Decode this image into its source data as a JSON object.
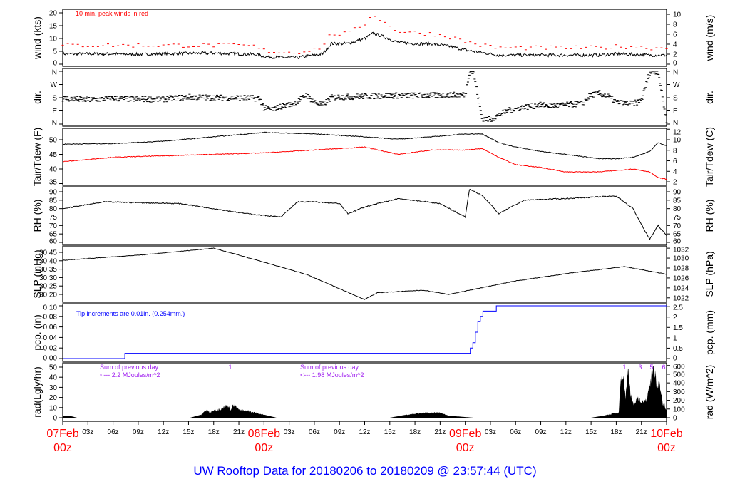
{
  "title": "UW Rooftop Data for 20180206  to  20180209 @ 23:57:44  (UTC)",
  "colors": {
    "black": "#000000",
    "red": "#ff0000",
    "blue": "#0000ff",
    "purple": "#a020f0"
  },
  "chart_data": [
    {
      "id": "wind",
      "type": "line",
      "ylabel": "wind (kts)",
      "ylabel_right": "wind (m/s)",
      "yticks": [
        "0",
        "5",
        "10",
        "15",
        "20"
      ],
      "yticks_right": [
        "0",
        "2",
        "4",
        "6",
        "8",
        "10"
      ],
      "ylim": [
        0,
        20
      ],
      "annotation": "10 min. peak winds in red",
      "x_hours": [
        0,
        3,
        6,
        9,
        12,
        15,
        18,
        21,
        23,
        24,
        26,
        28,
        30,
        31,
        32,
        34,
        36,
        37,
        38,
        40,
        42,
        44,
        46,
        48,
        50,
        52,
        56,
        60,
        64,
        66,
        68,
        70,
        72
      ],
      "series": [
        {
          "name": "wind",
          "color": "#000000",
          "values": [
            4,
            4,
            4,
            3.8,
            4,
            4.2,
            4.3,
            4,
            3.8,
            3,
            2.6,
            2.6,
            3.5,
            4,
            8,
            8,
            10,
            12,
            11,
            8.5,
            8,
            8,
            7,
            5.5,
            4.5,
            3.5,
            3.5,
            3.5,
            3.5,
            4,
            3.8,
            3.5,
            3.5
          ]
        },
        {
          "name": "peak",
          "color": "#ff0000",
          "values": [
            6.5,
            6.5,
            6.5,
            6.5,
            6.5,
            6.5,
            6.5,
            6.5,
            6,
            4.5,
            3.8,
            3.8,
            5,
            6,
            11,
            11,
            15,
            19,
            16,
            12,
            11.5,
            11,
            10,
            8,
            6.5,
            5.5,
            5.5,
            5.5,
            5.5,
            6,
            6,
            5.5,
            5.5
          ]
        }
      ]
    },
    {
      "id": "dir",
      "type": "scatter",
      "ylabel": "dir.",
      "ylabel_right": "dir.",
      "yticks": [
        "N",
        "E",
        "S",
        "W",
        "N"
      ],
      "ylim": [
        0,
        360
      ],
      "x_hours": [
        0,
        3,
        6,
        9,
        12,
        15,
        18,
        21,
        23.5,
        24,
        25,
        26,
        27,
        28,
        29,
        30,
        31,
        32,
        33,
        34,
        36,
        40,
        44,
        48,
        48.5,
        49,
        50,
        51,
        52,
        53,
        55,
        57,
        59,
        61,
        62,
        63,
        64,
        65,
        66,
        67,
        68,
        69,
        70,
        71,
        72
      ],
      "values": [
        175,
        165,
        175,
        170,
        170,
        185,
        180,
        180,
        175,
        110,
        100,
        120,
        130,
        150,
        200,
        150,
        130,
        180,
        185,
        185,
        190,
        195,
        195,
        200,
        360,
        350,
        40,
        30,
        60,
        90,
        115,
        130,
        125,
        135,
        140,
        200,
        210,
        190,
        150,
        140,
        140,
        160,
        350,
        360,
        20
      ]
    },
    {
      "id": "temp",
      "type": "line",
      "ylabel": "Tair/Tdew (F)",
      "ylabel_right": "Tair/Tdew (C)",
      "yticks": [
        "35",
        "40",
        "45",
        "50"
      ],
      "yticks_right": [
        "2",
        "4",
        "6",
        "8",
        "10",
        "12"
      ],
      "ylim": [
        35,
        54
      ],
      "x_hours": [
        0,
        6,
        12,
        18,
        24,
        30,
        36,
        40,
        44,
        48,
        50,
        52,
        54,
        57,
        60,
        64,
        66,
        68,
        70,
        71,
        72
      ],
      "series": [
        {
          "name": "Tair",
          "color": "#000000",
          "values": [
            48.5,
            48.7,
            49.5,
            51,
            52.5,
            52,
            51,
            50.2,
            51,
            52,
            52,
            49,
            47.5,
            46,
            45,
            43.5,
            43.5,
            44,
            46,
            49,
            48
          ]
        },
        {
          "name": "Tdew",
          "color": "#ff0000",
          "values": [
            42.5,
            44,
            44.5,
            45,
            45.5,
            46.5,
            47.5,
            45,
            46.5,
            46.5,
            47,
            44,
            41.5,
            40.5,
            39,
            39,
            39.5,
            40,
            39,
            37,
            36.5
          ]
        }
      ]
    },
    {
      "id": "rh",
      "type": "line",
      "ylabel": "RH (%)",
      "ylabel_right": "RH (%)",
      "yticks": [
        "60",
        "65",
        "70",
        "75",
        "80",
        "85",
        "90"
      ],
      "ylim": [
        60,
        90
      ],
      "x_hours": [
        0,
        5,
        14,
        22,
        26,
        28,
        30,
        33,
        34,
        36,
        40,
        45,
        48,
        48.5,
        50,
        52,
        55,
        60,
        66,
        68,
        69.5,
        70,
        71,
        72
      ],
      "series": [
        {
          "name": "RH",
          "color": "#000000",
          "values": [
            80,
            84,
            83,
            77,
            75,
            84,
            84,
            83,
            77,
            81,
            86,
            83,
            75,
            91.5,
            88,
            77,
            85,
            86,
            87.5,
            80,
            66,
            62,
            70,
            64
          ]
        }
      ]
    },
    {
      "id": "slp",
      "type": "line",
      "ylabel": "SLP (inHg)",
      "ylabel_right": "SLP (hPa)",
      "yticks": [
        "30.20",
        "30.25",
        "30.30",
        "30.35",
        "30.40",
        "30.45"
      ],
      "yticks_right": [
        "1022",
        "1024",
        "1026",
        "1028",
        "1030",
        "1032"
      ],
      "ylim": [
        30.18,
        30.48
      ],
      "x_hours": [
        0,
        10,
        18,
        22,
        29,
        36,
        37.5,
        43,
        46,
        54,
        61,
        67,
        72
      ],
      "series": [
        {
          "name": "SLP",
          "color": "#000000",
          "values": [
            30.403,
            30.437,
            30.475,
            30.42,
            30.32,
            30.17,
            30.21,
            30.225,
            30.2,
            30.28,
            30.33,
            30.365,
            30.32
          ]
        }
      ]
    },
    {
      "id": "pcp",
      "type": "step",
      "ylabel": "pcp. (in)",
      "ylabel_right": "pcp. (mm)",
      "yticks": [
        "0.00",
        "0.02",
        "0.04",
        "0.06",
        "0.08",
        "0.10"
      ],
      "yticks_right": [
        "0",
        "0.5",
        "1",
        "1.5",
        "2",
        "2.5"
      ],
      "ylim": [
        0,
        0.1
      ],
      "annotation": "Tip increments are 0.01in. (0.254mm.)",
      "x_hours": [
        0,
        7.4,
        48.6,
        48.9,
        49.2,
        49.5,
        49.8,
        50.1,
        51.7,
        72
      ],
      "series": [
        {
          "name": "pcp",
          "color": "#0000ff",
          "values": [
            0,
            0.01,
            0.02,
            0.03,
            0.05,
            0.07,
            0.08,
            0.09,
            0.1,
            0.1
          ]
        }
      ]
    },
    {
      "id": "rad",
      "type": "area",
      "ylabel": "rad(Lgly/hr)",
      "ylabel_right": "rad (W/m^2)",
      "yticks": [
        "0",
        "10",
        "20",
        "30",
        "40",
        "50"
      ],
      "yticks_right": [
        "0",
        "100",
        "200",
        "300",
        "400",
        "500",
        "600"
      ],
      "ylim": [
        0,
        50
      ],
      "annotations": [
        {
          "line1": "Sum of previous day",
          "line2": "<--- 2.2 MJoules/m^2"
        },
        {
          "line1": "Sum of previous day",
          "line2": "<--- 1.98 MJoules/m^2"
        }
      ],
      "markers": [
        "1",
        "1",
        "3",
        "5",
        "6"
      ],
      "x_hours": [
        0,
        1,
        1.7,
        15.2,
        16.5,
        17.2,
        17.5,
        18,
        19,
        19.6,
        20,
        20.3,
        21,
        22,
        23,
        24,
        25.5,
        39,
        41,
        43,
        45,
        46,
        49,
        63,
        64.5,
        65.5,
        66.3,
        66.5,
        66.8,
        67.1,
        67.4,
        67.7,
        68,
        68.5,
        69,
        69.7,
        70.3,
        70.6,
        70.9,
        71.2,
        71.5,
        71.8,
        72
      ],
      "series": [
        {
          "name": "rad",
          "color": "#000000",
          "values": [
            2,
            1.5,
            0,
            0,
            3,
            8,
            5,
            7,
            9,
            13,
            8,
            13,
            8,
            7,
            5,
            3,
            0,
            0,
            3,
            5,
            5,
            2,
            0,
            0,
            2,
            4,
            5,
            35,
            46,
            20,
            48,
            25,
            14,
            20,
            15,
            20,
            50,
            48,
            30,
            34,
            15,
            12,
            8
          ]
        }
      ]
    }
  ],
  "x_axis": {
    "hour_ticks": [
      "03z",
      "06z",
      "09z",
      "12z",
      "15z",
      "18z",
      "21z"
    ],
    "days": [
      {
        "date": "07Feb",
        "hour": "00z"
      },
      {
        "date": "08Feb",
        "hour": "00z"
      },
      {
        "date": "09Feb",
        "hour": "00z"
      },
      {
        "date": "10Feb",
        "hour": "00z"
      }
    ]
  }
}
